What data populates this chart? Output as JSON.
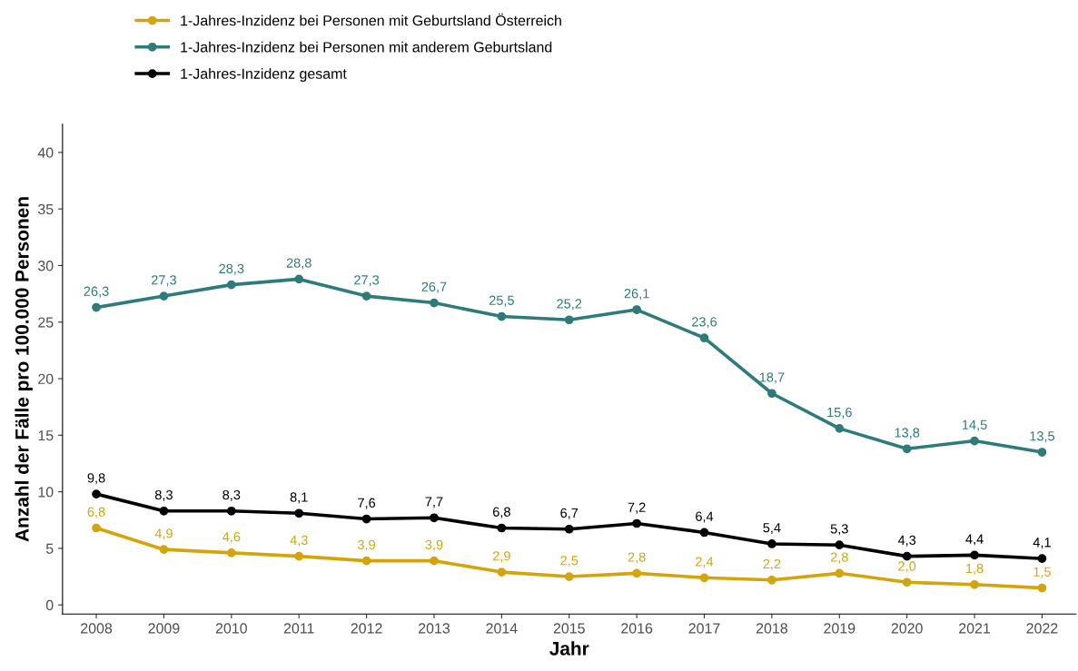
{
  "chart_data": {
    "type": "line",
    "xlabel": "Jahr",
    "ylabel": "Anzahl der Fälle pro 100.000 Personen",
    "categories": [
      "2008",
      "2009",
      "2010",
      "2011",
      "2012",
      "2013",
      "2014",
      "2015",
      "2016",
      "2017",
      "2018",
      "2019",
      "2020",
      "2021",
      "2022"
    ],
    "ylim": [
      -0.8,
      42.5
    ],
    "yticks": [
      0,
      5,
      10,
      15,
      20,
      25,
      30,
      35,
      40
    ],
    "grid": false,
    "legend": "top left",
    "marker": "circle",
    "line_style": "solid",
    "series": [
      {
        "name": "1-Jahres-Inzidenz bei Personen mit Geburtsland Österreich",
        "color": "#d4a50a",
        "values": [
          6.8,
          4.9,
          4.6,
          4.3,
          3.9,
          3.9,
          2.9,
          2.5,
          2.8,
          2.4,
          2.2,
          2.8,
          2.0,
          1.8,
          1.5
        ],
        "value_labels": [
          "6,8",
          "4,9",
          "4,6",
          "4,3",
          "3,9",
          "3,9",
          "2,9",
          "2,5",
          "2,8",
          "2,4",
          "2,2",
          "2,8",
          "2,0",
          "1,8",
          "1,5"
        ]
      },
      {
        "name": "1-Jahres-Inzidenz bei Personen mit anderem Geburtsland",
        "color": "#2e7b7b",
        "values": [
          26.3,
          27.3,
          28.3,
          28.8,
          27.3,
          26.7,
          25.5,
          25.2,
          26.1,
          23.6,
          18.7,
          15.6,
          13.8,
          14.5,
          13.5
        ],
        "value_labels": [
          "26,3",
          "27,3",
          "28,3",
          "28,8",
          "27,3",
          "26,7",
          "25,5",
          "25,2",
          "26,1",
          "23,6",
          "18,7",
          "15,6",
          "13,8",
          "14,5",
          "13,5"
        ]
      },
      {
        "name": "1-Jahres-Inzidenz gesamt",
        "color": "#000000",
        "values": [
          9.8,
          8.3,
          8.3,
          8.1,
          7.6,
          7.7,
          6.8,
          6.7,
          7.2,
          6.4,
          5.4,
          5.3,
          4.3,
          4.4,
          4.1
        ],
        "value_labels": [
          "9,8",
          "8,3",
          "8,3",
          "8,1",
          "7,6",
          "7,7",
          "6,8",
          "6,7",
          "7,2",
          "6,4",
          "5,4",
          "5,3",
          "4,3",
          "4,4",
          "4,1"
        ]
      }
    ]
  }
}
